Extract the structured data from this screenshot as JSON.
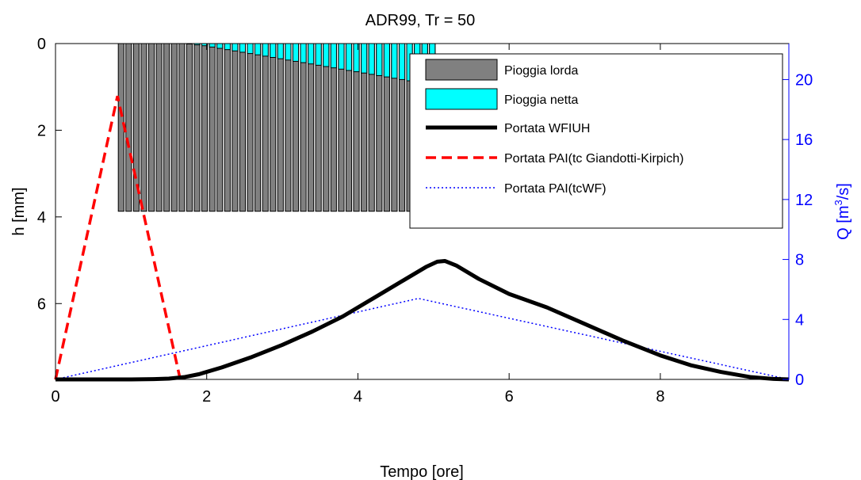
{
  "chart_data": {
    "type": "line",
    "title": "ADR99, Tr = 50",
    "xlabel": "Tempo [ore]",
    "ylabel_left": "h [mm]",
    "ylabel_right": {
      "main": "Q [m",
      "sup": "3",
      "tail": "/s]"
    },
    "xlim": [
      0,
      9.7
    ],
    "x_ticks": [
      0,
      2,
      4,
      6,
      8
    ],
    "ylim_left_reversed": [
      0,
      7.75
    ],
    "y_ticks_left": [
      0,
      2,
      4,
      6
    ],
    "ylim_right": [
      0,
      22.4
    ],
    "y_ticks_right": [
      0,
      4,
      8,
      12,
      16,
      20
    ],
    "colors": {
      "gross_rain": "#808080",
      "net_rain": "#00ffff",
      "wfiuh": "#000000",
      "pai_giandotti": "#ff0000",
      "pai_tcwf": "#0000ff",
      "right_axis": "#0000ff"
    },
    "legend": {
      "position": "top-right",
      "entries": [
        {
          "label": "Pioggia lorda",
          "marker": "gray-bar"
        },
        {
          "label": "Pioggia netta",
          "marker": "cyan-bar"
        },
        {
          "label": "Portata WFIUH",
          "marker": "black-thick-line"
        },
        {
          "label": "Portata PAI(tc Giandotti-Kirpich)",
          "marker": "red-dashed-line"
        },
        {
          "label": "Portata PAI(tcWF)",
          "marker": "blue-dotted-line"
        }
      ]
    },
    "rain": {
      "bar_centers": [
        0.868,
        0.968,
        1.069,
        1.169,
        1.27,
        1.37,
        1.47,
        1.571,
        1.671,
        1.772,
        1.872,
        1.972,
        2.073,
        2.173,
        2.274,
        2.374,
        2.474,
        2.575,
        2.675,
        2.776,
        2.876,
        2.976,
        3.077,
        3.177,
        3.278,
        3.378,
        3.478,
        3.579,
        3.679,
        3.78,
        3.88,
        3.98,
        4.081,
        4.181,
        4.282,
        4.382,
        4.482,
        4.583,
        4.683,
        4.784,
        4.884,
        4.984
      ],
      "bar_width": 0.075,
      "gross_h_mm": 3.87,
      "net_h_mm": [
        0,
        0,
        0,
        0,
        0,
        0,
        0,
        0,
        0,
        0.01,
        0.03,
        0.05,
        0.08,
        0.11,
        0.14,
        0.17,
        0.2,
        0.23,
        0.26,
        0.29,
        0.32,
        0.35,
        0.38,
        0.41,
        0.44,
        0.47,
        0.5,
        0.53,
        0.56,
        0.59,
        0.62,
        0.65,
        0.68,
        0.71,
        0.74,
        0.77,
        0.8,
        0.83,
        0.86,
        0.89,
        0.92,
        0.95
      ]
    },
    "series": [
      {
        "name": "Portata WFIUH",
        "x": [
          0,
          1,
          1.3,
          1.5,
          1.7,
          1.9,
          2.2,
          2.6,
          3.0,
          3.4,
          3.8,
          4.2,
          4.6,
          4.9,
          5.05,
          5.15,
          5.3,
          5.6,
          6.0,
          6.5,
          7.0,
          7.5,
          8.0,
          8.4,
          8.8,
          9.2,
          9.5,
          9.7
        ],
        "y": [
          0,
          0,
          0.02,
          0.05,
          0.15,
          0.35,
          0.8,
          1.5,
          2.3,
          3.2,
          4.2,
          5.4,
          6.6,
          7.5,
          7.85,
          7.9,
          7.6,
          6.7,
          5.7,
          4.8,
          3.7,
          2.6,
          1.6,
          0.95,
          0.5,
          0.15,
          0.03,
          0
        ]
      },
      {
        "name": "Portata PAI(tc Giandotti-Kirpich)",
        "x": [
          0,
          0.82,
          1.65
        ],
        "y": [
          0,
          18.9,
          0
        ]
      },
      {
        "name": "Portata PAI(tcWF)",
        "x": [
          0,
          4.8,
          9.7
        ],
        "y": [
          0,
          5.4,
          0
        ]
      }
    ]
  }
}
